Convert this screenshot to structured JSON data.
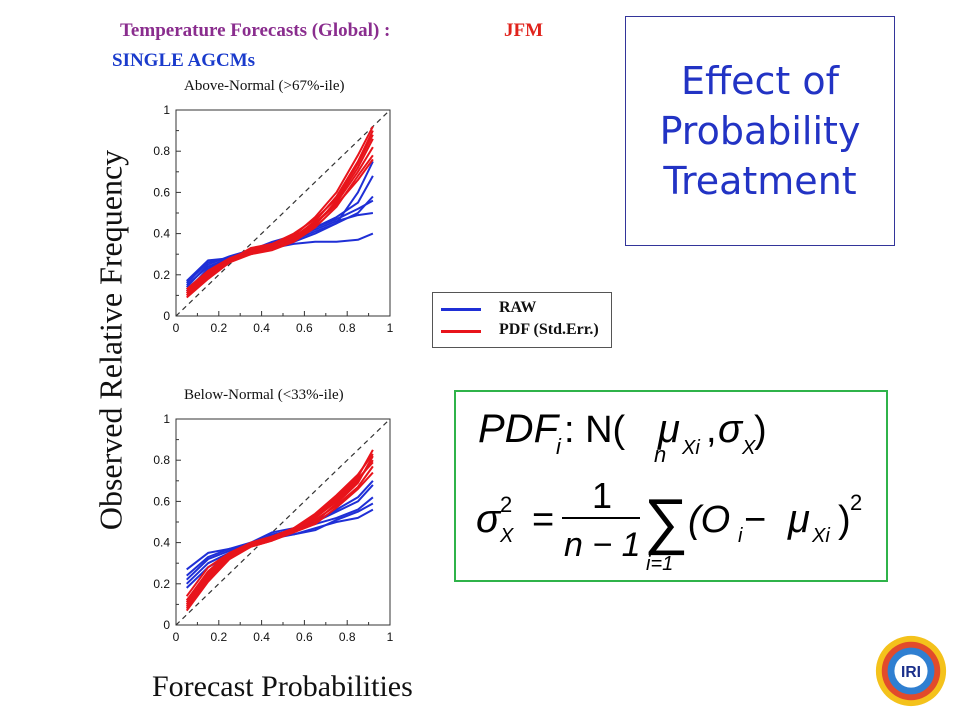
{
  "header": {
    "title": "Temperature Forecasts (Global) :",
    "season": "JFM",
    "subtitle": "SINGLE AGCMs"
  },
  "axes": {
    "ylabel": "Observed Relative Frequency",
    "xlabel": "Forecast Probabilities"
  },
  "effect_box": {
    "line1": "Effect of",
    "line2": "Probability",
    "line3": "Treatment"
  },
  "formula": {
    "lhs1": "PDF",
    "sub_i": "i",
    "colon": " : N(",
    "mu": "μ",
    "sub_xi": "Xi",
    "comma": ", ",
    "sigma": "σ",
    "sub_x": "X",
    "close": ")",
    "sq": "2",
    "eq": "=",
    "num": "1",
    "den": "n − 1",
    "sum": "∑",
    "sum_top": "n",
    "sum_bot": "i=1",
    "term_open": "(O",
    "term_minus": " − ",
    "term_close": ")"
  },
  "colors": {
    "raw": "#1f2fd6",
    "pdf": "#e8141b",
    "diag": "#333333"
  },
  "chart_data": [
    {
      "type": "line",
      "title": "Above-Normal (>67%-ile)",
      "xlim": [
        0,
        1
      ],
      "ylim": [
        0,
        1
      ],
      "xticks": [
        "0",
        "0.2",
        "0.4",
        "0.6",
        "0.8",
        "1"
      ],
      "yticks": [
        "0",
        "0.2",
        "0.4",
        "0.6",
        "0.8",
        "1"
      ],
      "x": [
        0.05,
        0.15,
        0.25,
        0.35,
        0.45,
        0.55,
        0.65,
        0.75,
        0.85,
        0.92
      ],
      "legend": [
        "RAW",
        "PDF (Std.Err.)"
      ],
      "series": [
        {
          "group": "RAW",
          "values": [
            0.17,
            0.27,
            0.28,
            0.31,
            0.33,
            0.35,
            0.36,
            0.36,
            0.37,
            0.4
          ]
        },
        {
          "group": "RAW",
          "values": [
            0.13,
            0.22,
            0.27,
            0.31,
            0.34,
            0.38,
            0.42,
            0.46,
            0.49,
            0.5
          ]
        },
        {
          "group": "RAW",
          "values": [
            0.15,
            0.24,
            0.28,
            0.32,
            0.36,
            0.39,
            0.43,
            0.47,
            0.52,
            0.56
          ]
        },
        {
          "group": "RAW",
          "values": [
            0.12,
            0.23,
            0.28,
            0.31,
            0.34,
            0.38,
            0.43,
            0.48,
            0.55,
            0.68
          ]
        },
        {
          "group": "RAW",
          "values": [
            0.14,
            0.25,
            0.29,
            0.32,
            0.35,
            0.37,
            0.41,
            0.45,
            0.6,
            0.75
          ]
        },
        {
          "group": "RAW",
          "values": [
            0.16,
            0.26,
            0.28,
            0.3,
            0.33,
            0.36,
            0.4,
            0.45,
            0.5,
            0.58
          ]
        },
        {
          "group": "PDF",
          "values": [
            0.1,
            0.19,
            0.26,
            0.31,
            0.33,
            0.37,
            0.45,
            0.55,
            0.7,
            0.82
          ]
        },
        {
          "group": "PDF",
          "values": [
            0.11,
            0.2,
            0.27,
            0.31,
            0.34,
            0.38,
            0.46,
            0.58,
            0.75,
            0.9
          ]
        },
        {
          "group": "PDF",
          "values": [
            0.12,
            0.21,
            0.27,
            0.3,
            0.33,
            0.36,
            0.43,
            0.53,
            0.68,
            0.78
          ]
        },
        {
          "group": "PDF",
          "values": [
            0.13,
            0.22,
            0.28,
            0.32,
            0.35,
            0.39,
            0.48,
            0.6,
            0.78,
            0.92
          ]
        },
        {
          "group": "PDF",
          "values": [
            0.09,
            0.18,
            0.26,
            0.3,
            0.32,
            0.36,
            0.44,
            0.56,
            0.72,
            0.86
          ]
        },
        {
          "group": "PDF",
          "values": [
            0.11,
            0.2,
            0.27,
            0.33,
            0.35,
            0.4,
            0.47,
            0.57,
            0.74,
            0.88
          ]
        },
        {
          "group": "PDF",
          "values": [
            0.1,
            0.19,
            0.26,
            0.31,
            0.34,
            0.38,
            0.45,
            0.54,
            0.66,
            0.76
          ]
        }
      ]
    },
    {
      "type": "line",
      "title": "Below-Normal (<33%-ile)",
      "xlim": [
        0,
        1
      ],
      "ylim": [
        0,
        1
      ],
      "xticks": [
        "0",
        "0.2",
        "0.4",
        "0.6",
        "0.8",
        "1"
      ],
      "yticks": [
        "0",
        "0.2",
        "0.4",
        "0.6",
        "0.8",
        "1"
      ],
      "x": [
        0.05,
        0.15,
        0.25,
        0.35,
        0.45,
        0.55,
        0.65,
        0.75,
        0.85,
        0.92
      ],
      "series": [
        {
          "group": "RAW",
          "values": [
            0.27,
            0.35,
            0.37,
            0.39,
            0.42,
            0.44,
            0.47,
            0.5,
            0.52,
            0.56
          ]
        },
        {
          "group": "RAW",
          "values": [
            0.2,
            0.3,
            0.35,
            0.39,
            0.44,
            0.46,
            0.5,
            0.55,
            0.6,
            0.68
          ]
        },
        {
          "group": "RAW",
          "values": [
            0.18,
            0.28,
            0.34,
            0.39,
            0.43,
            0.46,
            0.5,
            0.56,
            0.62,
            0.7
          ]
        },
        {
          "group": "RAW",
          "values": [
            0.22,
            0.32,
            0.36,
            0.4,
            0.45,
            0.47,
            0.49,
            0.52,
            0.56,
            0.62
          ]
        },
        {
          "group": "RAW",
          "values": [
            0.24,
            0.33,
            0.37,
            0.4,
            0.43,
            0.44,
            0.46,
            0.51,
            0.55,
            0.59
          ]
        },
        {
          "group": "PDF",
          "values": [
            0.08,
            0.22,
            0.33,
            0.38,
            0.42,
            0.46,
            0.52,
            0.6,
            0.7,
            0.8
          ]
        },
        {
          "group": "PDF",
          "values": [
            0.1,
            0.25,
            0.34,
            0.39,
            0.42,
            0.47,
            0.53,
            0.62,
            0.72,
            0.85
          ]
        },
        {
          "group": "PDF",
          "values": [
            0.12,
            0.26,
            0.35,
            0.4,
            0.43,
            0.46,
            0.51,
            0.58,
            0.67,
            0.77
          ]
        },
        {
          "group": "PDF",
          "values": [
            0.09,
            0.23,
            0.34,
            0.38,
            0.41,
            0.45,
            0.5,
            0.59,
            0.69,
            0.82
          ]
        },
        {
          "group": "PDF",
          "values": [
            0.14,
            0.28,
            0.35,
            0.39,
            0.42,
            0.46,
            0.52,
            0.61,
            0.71,
            0.79
          ]
        },
        {
          "group": "PDF",
          "values": [
            0.11,
            0.24,
            0.33,
            0.39,
            0.43,
            0.47,
            0.54,
            0.63,
            0.73,
            0.83
          ]
        },
        {
          "group": "PDF",
          "values": [
            0.07,
            0.21,
            0.32,
            0.38,
            0.41,
            0.45,
            0.49,
            0.57,
            0.66,
            0.74
          ]
        }
      ]
    }
  ],
  "logo": {
    "text": "IRI"
  }
}
